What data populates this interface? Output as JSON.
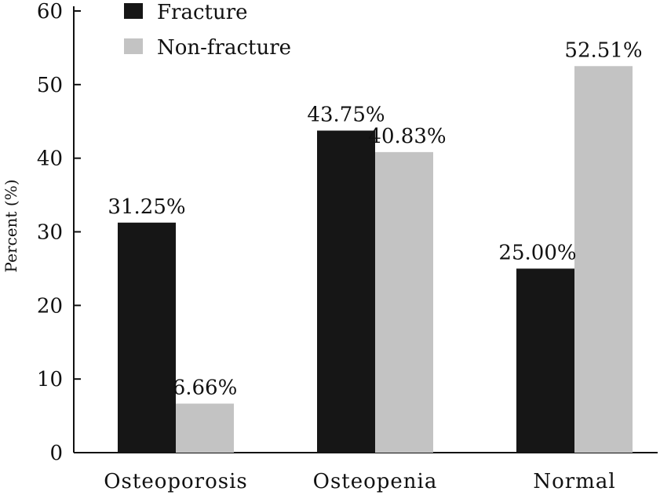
{
  "chart_data": {
    "type": "bar",
    "title": "",
    "xlabel": "",
    "ylabel": "Percent (%)",
    "ylim": [
      0,
      60
    ],
    "yticks": [
      0,
      10,
      20,
      30,
      40,
      50,
      60
    ],
    "grid": false,
    "legend_position": "top-left",
    "categories": [
      "Osteoporosis",
      "Osteopenia",
      "Normal"
    ],
    "series": [
      {
        "name": "Fracture",
        "color": "#161616",
        "values": [
          31.25,
          43.75,
          25.0
        ],
        "labels": [
          "31.25%",
          "43.75%",
          "25.00%"
        ]
      },
      {
        "name": "Non-fracture",
        "color": "#c3c3c3",
        "values": [
          6.66,
          40.83,
          52.51
        ],
        "labels": [
          "6.66%",
          "40.83%",
          "52.51%"
        ]
      }
    ]
  }
}
